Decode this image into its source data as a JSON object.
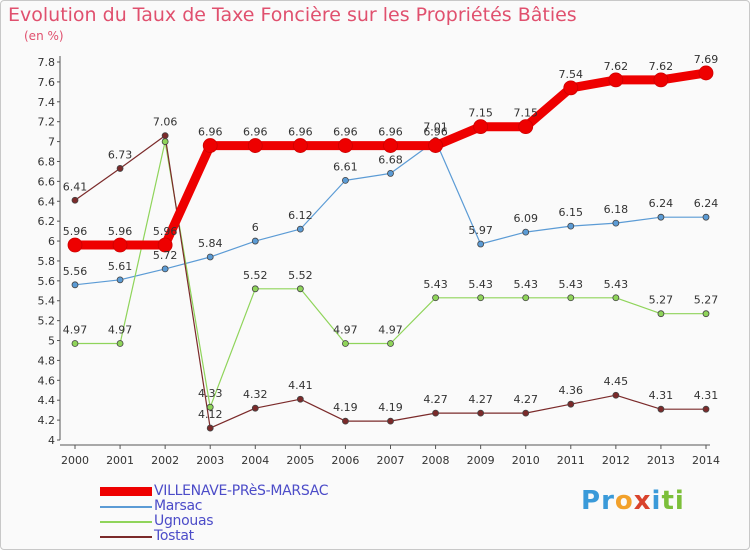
{
  "chart_data": {
    "type": "line",
    "title": "Evolution du Taux de Taxe Foncière sur les Propriétés Bâties",
    "subtitle": "(en %)",
    "x": [
      "2000",
      "2001",
      "2002",
      "2003",
      "2004",
      "2005",
      "2006",
      "2007",
      "2008",
      "2009",
      "2010",
      "2011",
      "2012",
      "2013",
      "2014"
    ],
    "yticks": [
      "4",
      "4.2",
      "4.4",
      "4.6",
      "4.8",
      "5",
      "5.2",
      "5.4",
      "5.6",
      "5.8",
      "6",
      "6.2",
      "6.4",
      "6.6",
      "6.8",
      "7",
      "7.2",
      "7.4",
      "7.6",
      "7.8"
    ],
    "ylim": [
      4,
      7.8
    ],
    "grid": false,
    "legend_position": "bottom-left",
    "series": [
      {
        "name": "VILLENAVE-PRèS-MARSAC",
        "color": "#ee0000",
        "values": [
          5.96,
          5.96,
          5.96,
          6.96,
          6.96,
          6.96,
          6.96,
          6.96,
          6.96,
          7.15,
          7.15,
          7.54,
          7.62,
          7.62,
          7.69
        ],
        "labels": [
          "5.96",
          "5.96",
          "5.96",
          "6.96",
          "6.96",
          "6.96",
          "6.96",
          "6.96",
          "6.96",
          "7.15",
          "7.15",
          "7.54",
          "7.62",
          "7.62",
          "7.69"
        ]
      },
      {
        "name": "Marsac",
        "color": "#5b9bd5",
        "values": [
          5.56,
          5.61,
          5.72,
          5.84,
          6,
          6.12,
          6.61,
          6.68,
          7.01,
          5.97,
          6.09,
          6.15,
          6.18,
          6.24,
          6.24
        ],
        "labels": [
          "5.56",
          "5.61",
          "5.72",
          "5.84",
          "6",
          "6.12",
          "6.61",
          "6.68",
          "7.01",
          "5.97",
          "6.09",
          "6.15",
          "6.18",
          "6.24",
          "6.24"
        ]
      },
      {
        "name": "Ugnouas",
        "color": "#8fd45a",
        "values": [
          4.97,
          4.97,
          7,
          4.33,
          5.52,
          5.52,
          4.97,
          4.97,
          5.43,
          5.43,
          5.43,
          5.43,
          5.43,
          5.27,
          5.27
        ],
        "labels": [
          "4.97",
          "4.97",
          "",
          "4.33",
          "5.52",
          "5.52",
          "4.97",
          "4.97",
          "5.43",
          "5.43",
          "5.43",
          "5.43",
          "5.43",
          "5.27",
          "5.27"
        ]
      },
      {
        "name": "Tostat",
        "color": "#7b2a2a",
        "values": [
          6.41,
          6.73,
          7.06,
          4.12,
          4.32,
          4.41,
          4.19,
          4.19,
          4.27,
          4.27,
          4.27,
          4.36,
          4.45,
          4.31,
          4.31
        ],
        "labels": [
          "6.41",
          "6.73",
          "7.06",
          "4.12",
          "4.32",
          "4.41",
          "4.19",
          "4.19",
          "4.27",
          "4.27",
          "4.27",
          "4.36",
          "4.45",
          "4.31",
          "4.31"
        ]
      }
    ]
  },
  "logo": {
    "letters": [
      "P",
      "r",
      "o",
      "x",
      "i",
      "t",
      "i"
    ],
    "colors": [
      "#3a9ad9",
      "#3a9ad9",
      "#f2a12b",
      "#d9432c",
      "#3a9ad9",
      "#7cbf3a",
      "#7cbf3a"
    ]
  }
}
